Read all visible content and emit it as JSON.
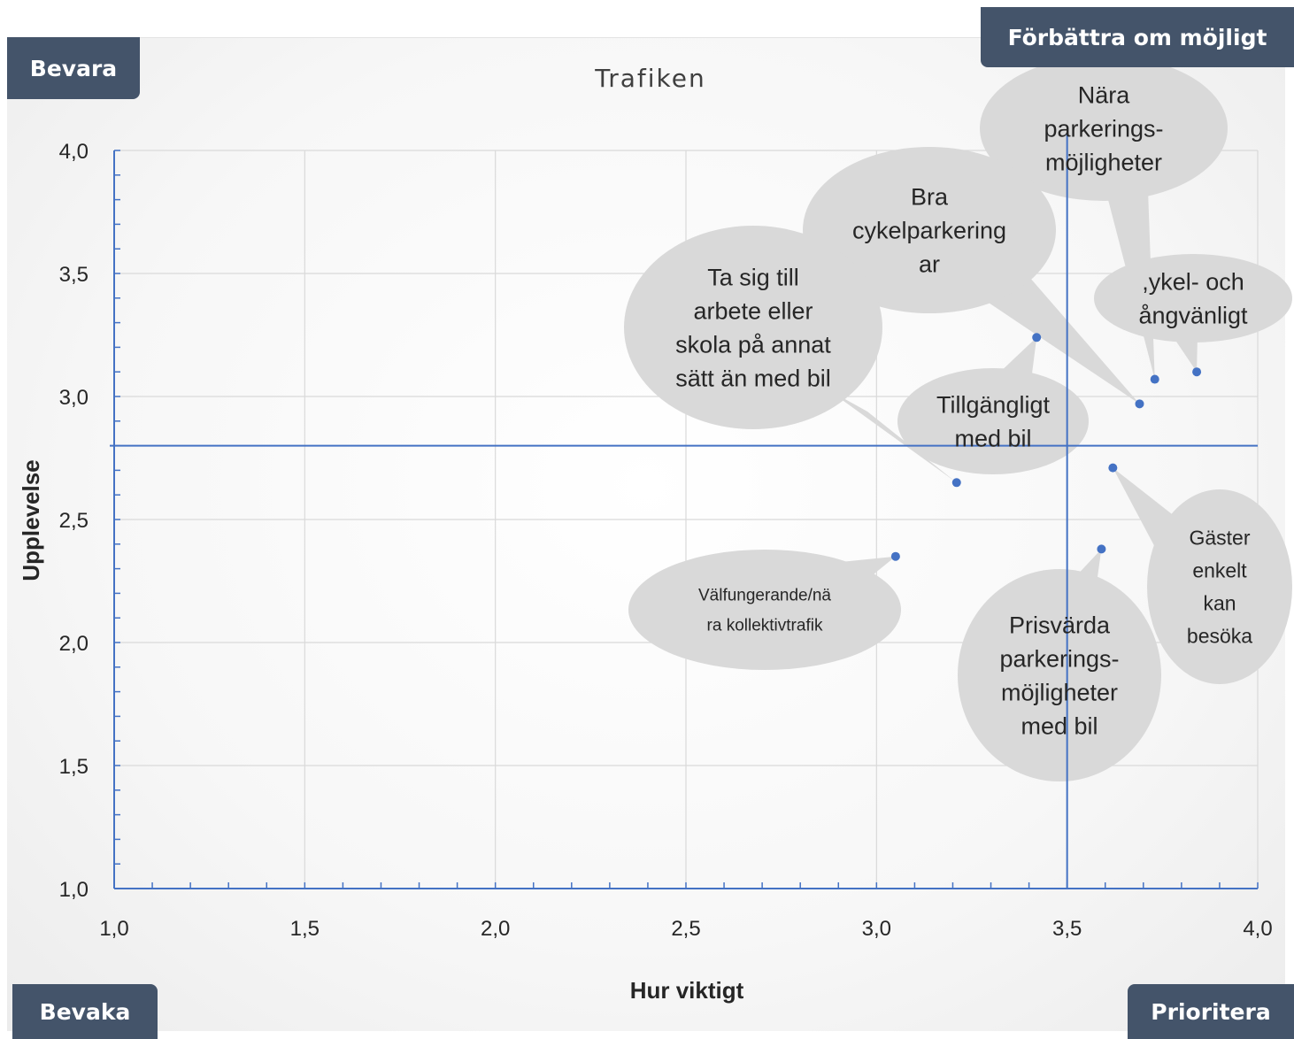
{
  "quadrants": {
    "top_left": "Bevara",
    "top_right": "Förbättra om möjligt",
    "bottom_left": "Bevaka",
    "bottom_right": "Prioritera"
  },
  "chart_data": {
    "type": "scatter",
    "title": "Trafiken",
    "xlabel": "Hur viktigt",
    "ylabel": "Upplevelse",
    "xlim": [
      1.0,
      4.0
    ],
    "ylim": [
      1.0,
      4.0
    ],
    "x_ticks": [
      "1,0",
      "1,5",
      "2,0",
      "2,5",
      "3,0",
      "3,5",
      "4,0"
    ],
    "y_ticks": [
      "1,0",
      "1,5",
      "2,0",
      "2,5",
      "3,0",
      "3,5",
      "4,0"
    ],
    "grid": true,
    "reference_lines": {
      "x": 3.5,
      "y": 2.8
    },
    "point_color": "#4472c4",
    "line_color": "#4472c4",
    "bubble_color": "#d9d9d9",
    "points": [
      {
        "x": 3.84,
        "y": 3.1,
        "label": "Cykel- och gångvänligt",
        "label_lines": [
          ",ykel- och",
          "ångvänligt"
        ]
      },
      {
        "x": 3.73,
        "y": 3.07,
        "label": "Nära parkerings-möjligheter",
        "label_lines": [
          "Nära",
          "parkerings-",
          "möjligheter"
        ]
      },
      {
        "x": 3.69,
        "y": 2.97,
        "label": "Bra cykelparkeringar",
        "label_lines": [
          "Bra",
          "cykelparkering",
          "ar"
        ]
      },
      {
        "x": 3.42,
        "y": 3.24,
        "label": "Tillgängligt med bil",
        "label_lines": [
          "Tillgängligt",
          "med bil"
        ]
      },
      {
        "x": 3.21,
        "y": 2.65,
        "label": "Ta sig till arbete eller skola på annat sätt än med bil",
        "label_lines": [
          "Ta sig till",
          "arbete eller",
          "skola på annat",
          "sätt än med bil"
        ]
      },
      {
        "x": 3.62,
        "y": 2.71,
        "label": "Gäster enkelt kan besöka",
        "label_lines": [
          "Gäster",
          "enkelt",
          "kan",
          "besöka"
        ]
      },
      {
        "x": 3.59,
        "y": 2.38,
        "label": "Prisvärda parkerings-möjligheter med bil",
        "label_lines": [
          "Prisvärda",
          "parkerings-",
          "möjligheter",
          "med bil"
        ]
      },
      {
        "x": 3.05,
        "y": 2.35,
        "label": "Välfungerande/nära kollektivtrafik",
        "label_lines": [
          "Välfungerande/nä",
          "ra kollektivtrafik"
        ]
      }
    ]
  }
}
